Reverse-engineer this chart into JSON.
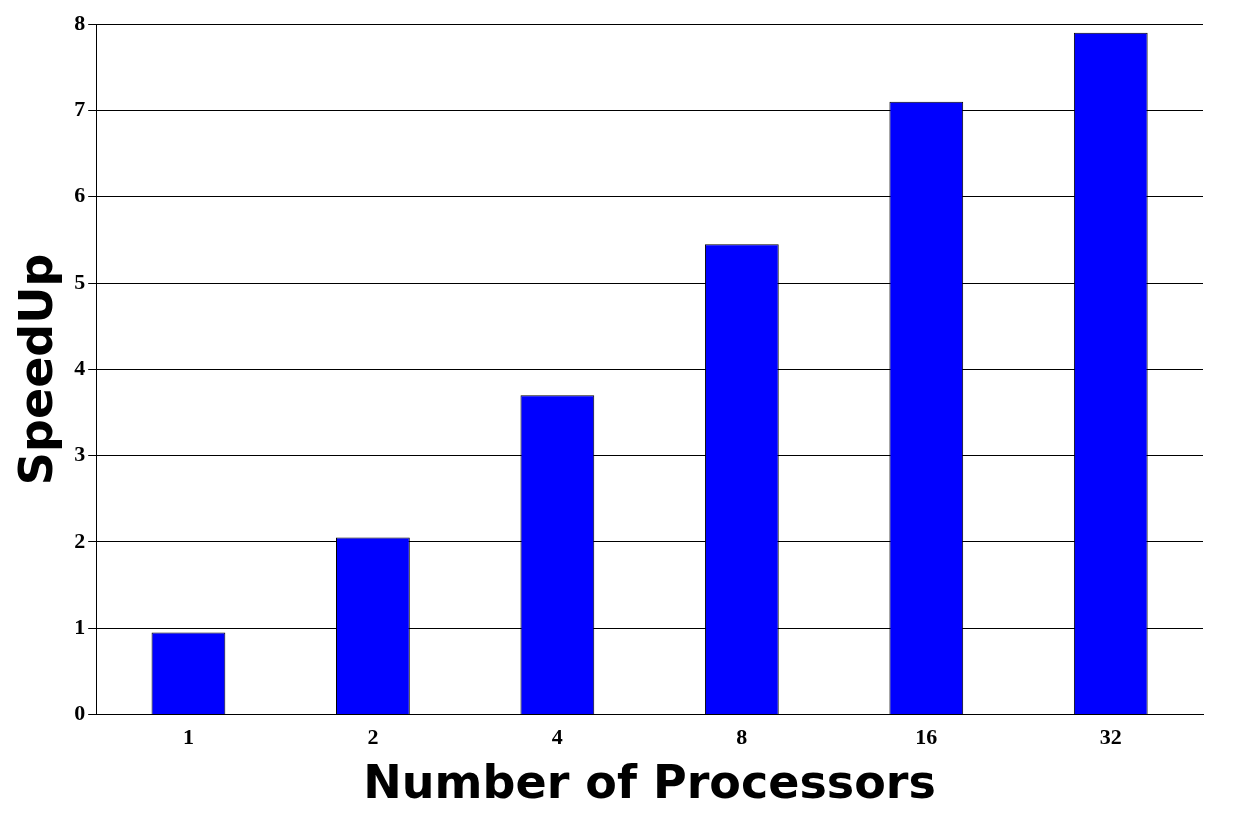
{
  "chart_data": {
    "type": "bar",
    "xlabel": "Number of Processors",
    "ylabel": "SpeedUp",
    "categories": [
      "1",
      "2",
      "4",
      "8",
      "16",
      "32"
    ],
    "values": [
      0.95,
      2.05,
      3.7,
      5.45,
      7.1,
      7.9
    ],
    "color": "#0000ff",
    "ylim": [
      0,
      8
    ],
    "yticks": [
      0,
      1,
      2,
      3,
      4,
      5,
      6,
      7,
      8
    ],
    "grid": "y",
    "legend": false
  }
}
